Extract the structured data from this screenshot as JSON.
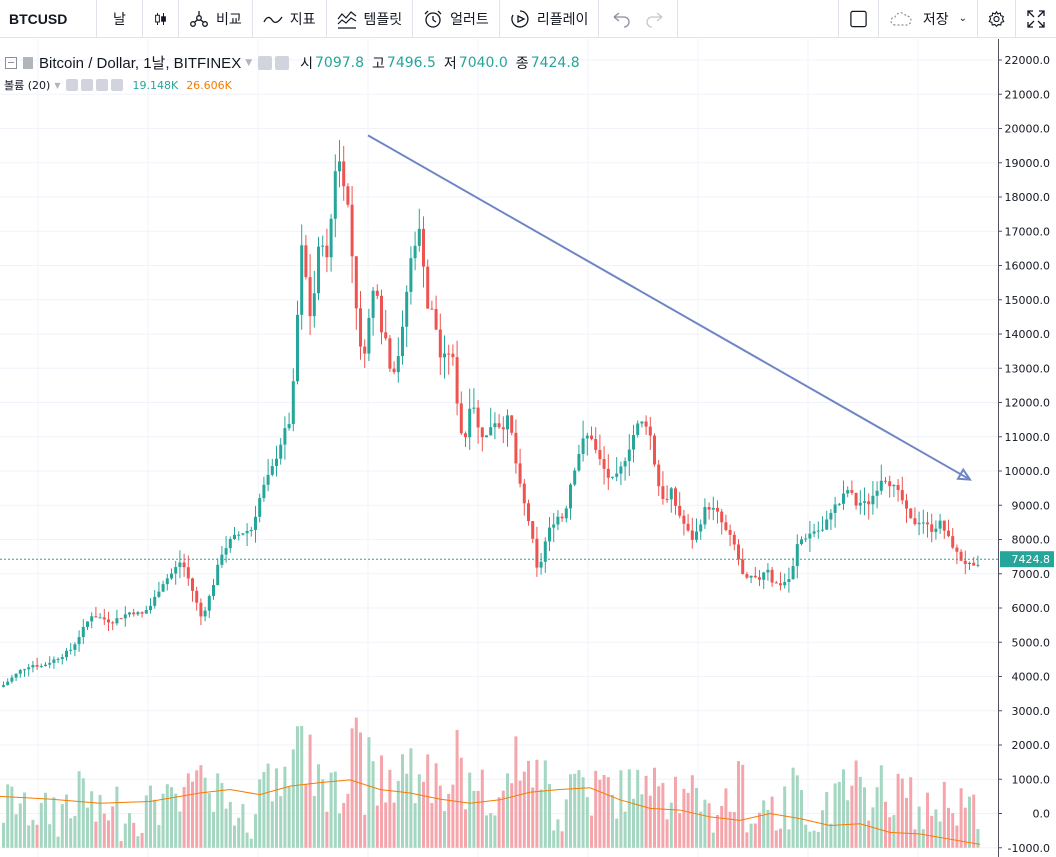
{
  "toolbar": {
    "symbol": "BTCUSD",
    "interval": "날",
    "compare": "비교",
    "indicators": "지표",
    "templates": "템플릿",
    "alerts": "얼러트",
    "replay": "리플레이",
    "save": "저장"
  },
  "legend": {
    "title": "Bitcoin / Dollar, 1날, BITFINEX",
    "open_label": "시",
    "open_value": "7097.8",
    "high_label": "고",
    "high_value": "7496.5",
    "low_label": "저",
    "low_value": "7040.0",
    "close_label": "종",
    "close_value": "7424.8",
    "volume_label": "볼륨 (20)",
    "volume_value": "19.148K",
    "volume_ma_value": "26.606K"
  },
  "colors": {
    "up": "#26a69a",
    "down": "#ef5350",
    "vol_up": "#a5d6c1",
    "vol_down": "#f4a6ac",
    "volume_ma": "#f57c00",
    "trendline": "#6f86c6",
    "last_price": "#26a69a"
  },
  "chart_data": {
    "type": "candlestick",
    "symbol": "BTCUSD",
    "exchange": "BITFINEX",
    "interval": "1D",
    "last_price": 7424.8,
    "last_price_label": "7424.8",
    "price_axis": {
      "ticks": [
        22000,
        21000,
        20000,
        19000,
        18000,
        17000,
        16000,
        15000,
        14000,
        13000,
        12000,
        11000,
        10000,
        9000,
        8000,
        7000,
        6000,
        5000,
        4000,
        3000,
        2000,
        1000,
        0,
        -1000
      ],
      "tick_labels": [
        "22000.0",
        "21000.0",
        "20000.0",
        "19000.0",
        "18000.0",
        "17000.0",
        "16000.0",
        "15000.0",
        "14000.0",
        "13000.0",
        "12000.0",
        "11000.0",
        "10000.0",
        "9000.0",
        "8000.0",
        "7000.0",
        "6000.0",
        "5000.0",
        "4000.0",
        "3000.0",
        "2000.0",
        "1000.0",
        "0.0",
        "-1000.0"
      ],
      "range": [
        -1000,
        22000
      ]
    },
    "close_path": [
      [
        0,
        3700
      ],
      [
        10,
        3950
      ],
      [
        20,
        4200
      ],
      [
        30,
        4350
      ],
      [
        40,
        4300
      ],
      [
        50,
        4450
      ],
      [
        60,
        4600
      ],
      [
        70,
        4800
      ],
      [
        80,
        5300
      ],
      [
        90,
        5800
      ],
      [
        100,
        5700
      ],
      [
        110,
        5600
      ],
      [
        120,
        5750
      ],
      [
        130,
        5900
      ],
      [
        140,
        5800
      ],
      [
        150,
        6100
      ],
      [
        160,
        6700
      ],
      [
        170,
        7000
      ],
      [
        180,
        7400
      ],
      [
        190,
        6600
      ],
      [
        200,
        5700
      ],
      [
        210,
        6500
      ],
      [
        220,
        7600
      ],
      [
        230,
        8000
      ],
      [
        240,
        8200
      ],
      [
        250,
        8300
      ],
      [
        260,
        9400
      ],
      [
        270,
        10000
      ],
      [
        280,
        10900
      ],
      [
        290,
        11600
      ],
      [
        300,
        16500
      ],
      [
        305,
        15500
      ],
      [
        310,
        14200
      ],
      [
        315,
        16000
      ],
      [
        320,
        17000
      ],
      [
        325,
        16000
      ],
      [
        330,
        17500
      ],
      [
        335,
        19300
      ],
      [
        340,
        18800
      ],
      [
        345,
        18200
      ],
      [
        350,
        16500
      ],
      [
        355,
        14800
      ],
      [
        360,
        13200
      ],
      [
        365,
        13800
      ],
      [
        370,
        15100
      ],
      [
        375,
        15500
      ],
      [
        380,
        14200
      ],
      [
        385,
        13800
      ],
      [
        390,
        12800
      ],
      [
        395,
        13200
      ],
      [
        400,
        13800
      ],
      [
        405,
        15200
      ],
      [
        410,
        16300
      ],
      [
        415,
        16900
      ],
      [
        420,
        17000
      ],
      [
        425,
        14800
      ],
      [
        430,
        14700
      ],
      [
        435,
        14100
      ],
      [
        440,
        13100
      ],
      [
        445,
        13400
      ],
      [
        450,
        13600
      ],
      [
        455,
        12200
      ],
      [
        460,
        11100
      ],
      [
        465,
        11000
      ],
      [
        470,
        12500
      ],
      [
        475,
        11300
      ],
      [
        480,
        11100
      ],
      [
        485,
        11000
      ],
      [
        490,
        11400
      ],
      [
        495,
        11500
      ],
      [
        500,
        11200
      ],
      [
        505,
        11600
      ],
      [
        510,
        11100
      ],
      [
        515,
        10100
      ],
      [
        520,
        9300
      ],
      [
        525,
        8800
      ],
      [
        530,
        8200
      ],
      [
        535,
        7100
      ],
      [
        540,
        7400
      ],
      [
        545,
        8100
      ],
      [
        550,
        8400
      ],
      [
        555,
        8700
      ],
      [
        560,
        8600
      ],
      [
        565,
        9000
      ],
      [
        570,
        9800
      ],
      [
        575,
        10300
      ],
      [
        580,
        10800
      ],
      [
        585,
        11000
      ],
      [
        590,
        11000
      ],
      [
        595,
        10500
      ],
      [
        600,
        10200
      ],
      [
        605,
        9900
      ],
      [
        610,
        9700
      ],
      [
        615,
        9800
      ],
      [
        620,
        10100
      ],
      [
        625,
        10500
      ],
      [
        630,
        10900
      ],
      [
        635,
        11300
      ],
      [
        640,
        11400
      ],
      [
        645,
        11400
      ],
      [
        650,
        10900
      ],
      [
        655,
        9800
      ],
      [
        660,
        9300
      ],
      [
        665,
        9100
      ],
      [
        670,
        9400
      ],
      [
        675,
        8900
      ],
      [
        680,
        8600
      ],
      [
        685,
        8300
      ],
      [
        690,
        8000
      ],
      [
        695,
        8200
      ],
      [
        700,
        8600
      ],
      [
        705,
        9000
      ],
      [
        710,
        8900
      ],
      [
        715,
        8800
      ],
      [
        720,
        8500
      ],
      [
        725,
        8200
      ],
      [
        730,
        8000
      ],
      [
        735,
        7700
      ],
      [
        740,
        7000
      ],
      [
        745,
        6800
      ],
      [
        750,
        6900
      ],
      [
        755,
        6800
      ],
      [
        760,
        6900
      ],
      [
        765,
        7300
      ],
      [
        770,
        6800
      ],
      [
        775,
        6700
      ],
      [
        780,
        6700
      ],
      [
        785,
        6800
      ],
      [
        790,
        6900
      ],
      [
        795,
        7800
      ],
      [
        800,
        8000
      ],
      [
        805,
        8100
      ],
      [
        810,
        8200
      ],
      [
        815,
        8300
      ],
      [
        820,
        8200
      ],
      [
        825,
        8500
      ],
      [
        830,
        8900
      ],
      [
        835,
        9000
      ],
      [
        840,
        9100
      ],
      [
        845,
        9500
      ],
      [
        850,
        9300
      ],
      [
        855,
        9000
      ],
      [
        860,
        9100
      ],
      [
        865,
        9000
      ],
      [
        870,
        9200
      ],
      [
        875,
        9500
      ],
      [
        880,
        9800
      ],
      [
        885,
        9800
      ],
      [
        890,
        9600
      ],
      [
        895,
        9400
      ],
      [
        900,
        9200
      ],
      [
        905,
        8800
      ],
      [
        910,
        8500
      ],
      [
        915,
        8500
      ],
      [
        920,
        8600
      ],
      [
        925,
        8400
      ],
      [
        930,
        8300
      ],
      [
        935,
        8400
      ],
      [
        940,
        8500
      ],
      [
        945,
        8100
      ],
      [
        950,
        7900
      ],
      [
        955,
        7600
      ],
      [
        960,
        7400
      ],
      [
        965,
        7300
      ],
      [
        970,
        7200
      ],
      [
        975,
        7100
      ],
      [
        980,
        7425
      ]
    ],
    "volume_ma_path": [
      [
        0,
        500
      ],
      [
        50,
        420
      ],
      [
        100,
        300
      ],
      [
        150,
        350
      ],
      [
        200,
        600
      ],
      [
        230,
        700
      ],
      [
        260,
        550
      ],
      [
        290,
        800
      ],
      [
        320,
        900
      ],
      [
        350,
        980
      ],
      [
        380,
        700
      ],
      [
        410,
        600
      ],
      [
        440,
        420
      ],
      [
        470,
        300
      ],
      [
        500,
        400
      ],
      [
        530,
        620
      ],
      [
        560,
        700
      ],
      [
        590,
        750
      ],
      [
        620,
        400
      ],
      [
        650,
        150
      ],
      [
        680,
        100
      ],
      [
        710,
        -100
      ],
      [
        740,
        -200
      ],
      [
        770,
        0
      ],
      [
        800,
        -150
      ],
      [
        830,
        -350
      ],
      [
        860,
        -300
      ],
      [
        890,
        -550
      ],
      [
        920,
        -600
      ],
      [
        950,
        -750
      ],
      [
        980,
        -900
      ]
    ],
    "trendline": {
      "start": [
        368,
        19800
      ],
      "end": [
        970,
        9750
      ]
    }
  }
}
